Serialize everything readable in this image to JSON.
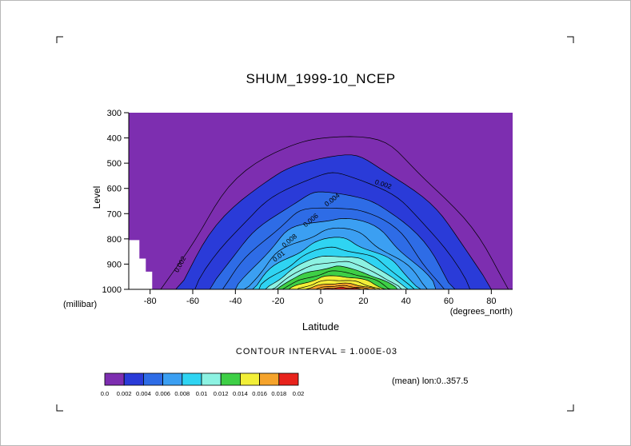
{
  "header": {
    "title": "SHUM_1999-10_NCEP"
  },
  "axes": {
    "x_label": "Latitude",
    "x_units": "(degrees_north)",
    "y_label": "Level",
    "y_units": "(millibar)"
  },
  "notes": {
    "contour_interval": "CONTOUR INTERVAL = 1.000E-03",
    "mean": "(mean) lon:0..357.5"
  },
  "chart_data": {
    "type": "heatmap",
    "subtype": "filled_contour_section",
    "title": "SHUM_1999-10_NCEP",
    "xlabel": "Latitude",
    "x_units": "(degrees_north)",
    "ylabel": "Level",
    "y_units": "(millibar)",
    "x_range": [
      -90,
      90
    ],
    "y_range": [
      300,
      1000
    ],
    "y_inverted": true,
    "x_ticks": [
      "-80",
      "-60",
      "-40",
      "-20",
      "0",
      "20",
      "40",
      "60",
      "80"
    ],
    "y_ticks": [
      "300",
      "400",
      "500",
      "600",
      "700",
      "800",
      "900",
      "1000"
    ],
    "contour_interval": 0.001,
    "contour_interval_label": "CONTOUR INTERVAL = 1.000E-03",
    "mean_label": "(mean) lon:0..357.5",
    "colorbar": {
      "boundaries": [
        0.0,
        0.002,
        0.004,
        0.006,
        0.008,
        0.01,
        0.012,
        0.014,
        0.016,
        0.018,
        0.02
      ],
      "tick_labels": [
        "0.0",
        "0.002",
        "0.004",
        "0.006",
        "0.008",
        "0.01",
        "0.012",
        "0.014",
        "0.016",
        "0.018",
        "0.02"
      ],
      "colors": [
        "#7d2eb0",
        "#2a3bd8",
        "#2e6ce6",
        "#3b9ff2",
        "#2fd4f2",
        "#8cf2e2",
        "#3ecf46",
        "#f2ef38",
        "#f5a32b",
        "#e8231c"
      ]
    },
    "contours": [
      {
        "level": 0.001,
        "left_lat": -75,
        "right_lat": 88,
        "peak_lat": 7,
        "top_level": 389,
        "filled": false
      },
      {
        "level": 0.002,
        "left_lat": -68,
        "right_lat": 80,
        "peak_lat": 7,
        "top_level": 474,
        "filled": true
      },
      {
        "level": 0.003,
        "left_lat": -59,
        "right_lat": 70,
        "peak_lat": 7,
        "top_level": 547,
        "filled": false
      },
      {
        "level": 0.004,
        "left_lat": -52,
        "right_lat": 63,
        "peak_lat": 7,
        "top_level": 617,
        "filled": true
      },
      {
        "level": 0.005,
        "left_lat": -46,
        "right_lat": 58,
        "peak_lat": 7,
        "top_level": 671,
        "filled": false
      },
      {
        "level": 0.006,
        "left_lat": -40,
        "right_lat": 54,
        "peak_lat": 7,
        "top_level": 718,
        "filled": true
      },
      {
        "level": 0.007,
        "left_lat": -36,
        "right_lat": 50,
        "peak_lat": 7,
        "top_level": 762,
        "filled": false
      },
      {
        "level": 0.008,
        "left_lat": -32,
        "right_lat": 47,
        "peak_lat": 7,
        "top_level": 800,
        "filled": true
      },
      {
        "level": 0.009,
        "left_lat": -29,
        "right_lat": 44,
        "peak_lat": 7,
        "top_level": 835,
        "filled": false
      },
      {
        "level": 0.01,
        "left_lat": -26,
        "right_lat": 41,
        "peak_lat": 7,
        "top_level": 864,
        "filled": true
      },
      {
        "level": 0.011,
        "left_lat": -23,
        "right_lat": 38,
        "peak_lat": 7,
        "top_level": 889,
        "filled": false
      },
      {
        "level": 0.012,
        "left_lat": -21,
        "right_lat": 36,
        "peak_lat": 7,
        "top_level": 911,
        "filled": true
      },
      {
        "level": 0.013,
        "left_lat": -18,
        "right_lat": 33,
        "peak_lat": 8,
        "top_level": 930,
        "filled": false
      },
      {
        "level": 0.014,
        "left_lat": -15,
        "right_lat": 31,
        "peak_lat": 8,
        "top_level": 947,
        "filled": true
      },
      {
        "level": 0.015,
        "left_lat": -11,
        "right_lat": 28,
        "peak_lat": 8,
        "top_level": 963,
        "filled": false
      },
      {
        "level": 0.016,
        "left_lat": -8,
        "right_lat": 26,
        "peak_lat": 9,
        "top_level": 976,
        "filled": true
      },
      {
        "level": 0.017,
        "left_lat": -3,
        "right_lat": 23,
        "peak_lat": 9,
        "top_level": 986,
        "filled": false
      },
      {
        "level": 0.018,
        "left_lat": 1,
        "right_lat": 20,
        "peak_lat": 10,
        "top_level": 993,
        "filled": true
      }
    ],
    "contour_labels": [
      {
        "text": "0.002",
        "lat": -65,
        "level": 905,
        "rotation": -62
      },
      {
        "text": "0.002",
        "lat": 29,
        "level": 592,
        "rotation": 18
      },
      {
        "text": "0.004",
        "lat": 6,
        "level": 652,
        "rotation": -38
      },
      {
        "text": "0.006",
        "lat": -4,
        "level": 733,
        "rotation": -40
      },
      {
        "text": "0.008",
        "lat": -14,
        "level": 814,
        "rotation": -40
      },
      {
        "text": "0.01",
        "lat": -19,
        "level": 876,
        "rotation": -38
      }
    ],
    "missing_data_polygon": [
      [
        -90,
        805
      ],
      [
        -85,
        805
      ],
      [
        -85,
        878
      ],
      [
        -82,
        878
      ],
      [
        -82,
        930
      ],
      [
        -79,
        930
      ],
      [
        -79,
        1000
      ],
      [
        -90,
        1000
      ]
    ]
  }
}
